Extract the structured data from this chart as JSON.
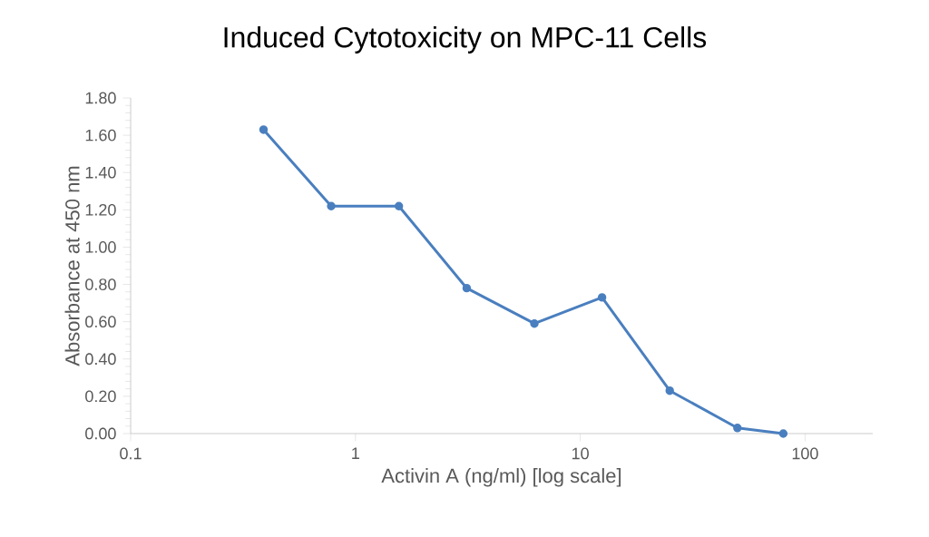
{
  "chart_data": {
    "type": "line",
    "title": "Induced Cytotoxicity on MPC-11 Cells",
    "xlabel": "Activin A (ng/ml) [log scale]",
    "ylabel": "Absorbance  at 450 nm",
    "log": "x",
    "x": [
      0.39,
      0.78,
      1.56,
      3.125,
      6.25,
      12.5,
      25,
      50,
      80
    ],
    "series": [
      {
        "color": "#4a7fbf",
        "values": [
          1.63,
          1.22,
          1.22,
          0.78,
          0.59,
          0.73,
          0.23,
          0.03,
          0
        ]
      }
    ],
    "xlim": [
      0.1,
      200
    ],
    "xticks": [
      0.1,
      1,
      10,
      100
    ],
    "ylim": [
      0,
      1.8
    ],
    "yticks": [
      {
        "value": 0,
        "label": "0.00"
      },
      {
        "value": 0.2,
        "label": "0.20"
      },
      {
        "value": 0.4,
        "label": "0.40"
      },
      {
        "value": 0.6,
        "label": "0.60"
      },
      {
        "value": 0.8,
        "label": "0.80"
      },
      {
        "value": 1.0,
        "label": "1.00"
      },
      {
        "value": 1.2,
        "label": "1.20"
      },
      {
        "value": 1.4,
        "label": "1.40"
      },
      {
        "value": 1.6,
        "label": "1.60"
      },
      {
        "value": 1.8,
        "label": "1.80"
      }
    ],
    "grid": false,
    "legend": false,
    "marker": "circle",
    "line_style": "solid"
  }
}
